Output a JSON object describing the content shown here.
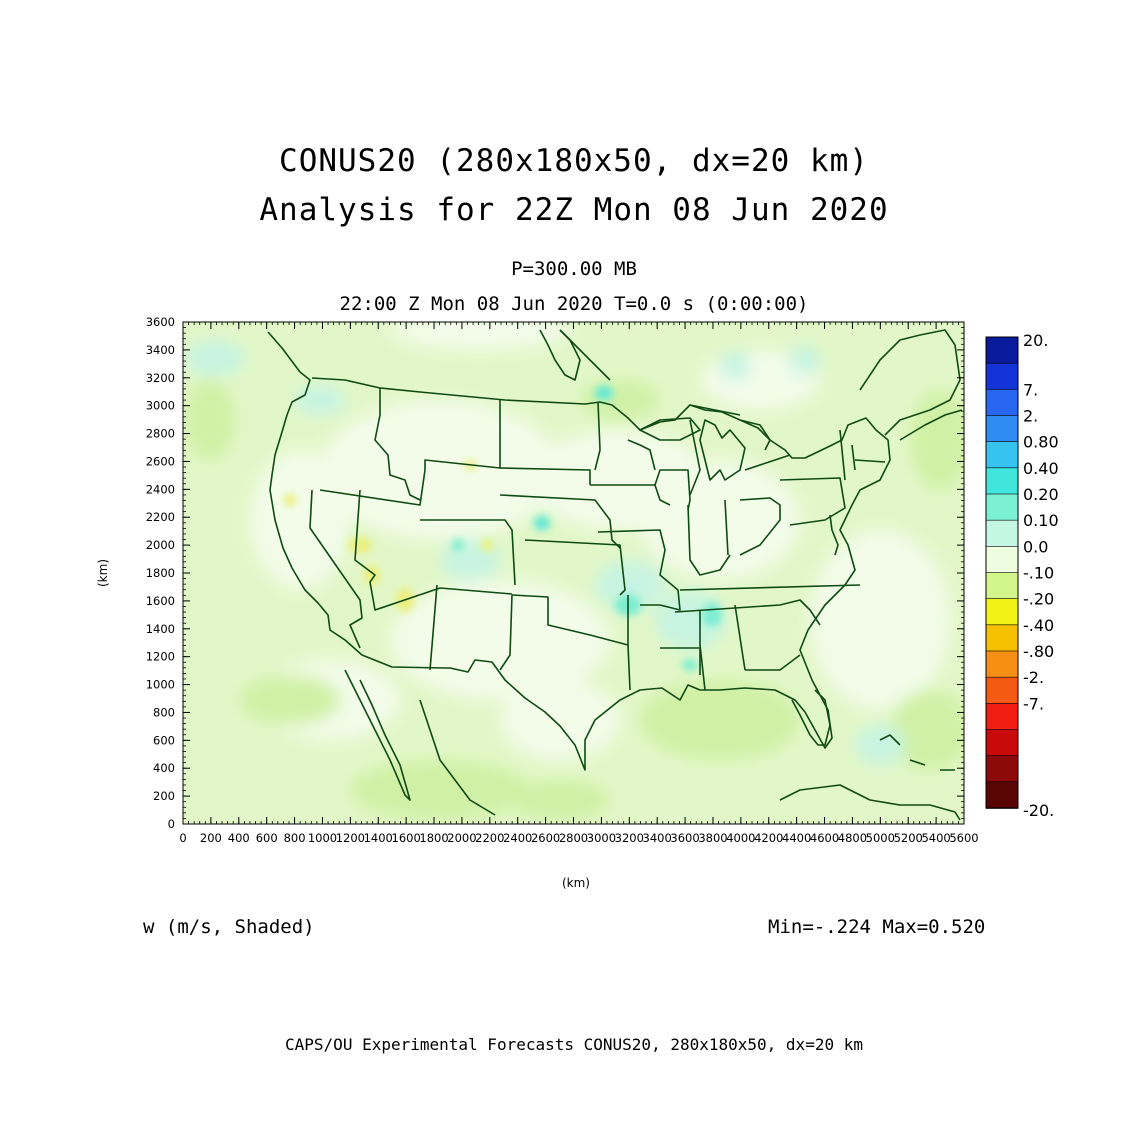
{
  "header": {
    "title_line1": "CONUS20 (280x180x50, dx=20 km)",
    "title_line2": "Analysis for 22Z Mon 08 Jun 2020",
    "level": "P=300.00 MB",
    "valid_time": "22:00 Z Mon 08 Jun 2020    T=0.0 s (0:00:00)"
  },
  "axes": {
    "x_label": "(km)",
    "y_label": "(km)",
    "x_ticks": [
      "0",
      "200",
      "400",
      "600",
      "800",
      "1000",
      "1200",
      "1400",
      "1600",
      "1800",
      "2000",
      "2200",
      "2400",
      "2600",
      "2800",
      "3000",
      "3200",
      "3400",
      "3600",
      "3800",
      "4000",
      "4200",
      "4400",
      "4600",
      "4800",
      "5000",
      "5200",
      "5400",
      "5600"
    ],
    "y_ticks": [
      "0",
      "200",
      "400",
      "600",
      "800",
      "1000",
      "1200",
      "1400",
      "1600",
      "1800",
      "2000",
      "2200",
      "2400",
      "2600",
      "2800",
      "3000",
      "3200",
      "3400",
      "3600"
    ],
    "x_range": [
      0,
      5600
    ],
    "y_range": [
      0,
      3600
    ]
  },
  "colorbar": {
    "levels": [
      "20.",
      "7.",
      "2.",
      "0.80",
      "0.40",
      "0.20",
      "0.10",
      "0.0",
      "-.10",
      "-.20",
      "-.40",
      "-.80",
      "-2.",
      "-7.",
      "-20."
    ],
    "colors": [
      "#0a1a9c",
      "#1433d6",
      "#2866f2",
      "#2e8cf0",
      "#36c3f0",
      "#40e6dc",
      "#7cf0d2",
      "#c4f6e4",
      "#eefce0",
      "#d2f58c",
      "#f2f214",
      "#f5c000",
      "#f59014",
      "#f55a14",
      "#f01e14",
      "#c80a0a",
      "#8c0a0a",
      "#5a0505"
    ]
  },
  "field": {
    "variable": "w (m/s, Shaded)",
    "min_max": "Min=-.224 Max=0.520",
    "colors": {
      "base": "#e2f7c8",
      "zero_band": "#f2fce9",
      "neg_light": "#d0f1a5",
      "neg_medium": "#ecf07a",
      "pos_light": "#c7f4e2",
      "pos_medium": "#7ceed0",
      "pos_strong": "#40dfd8",
      "outline": "#0f4a14"
    }
  },
  "footer": {
    "text": "CAPS/OU Experimental Forecasts  CONUS20, 280x180x50, dx=20 km"
  }
}
